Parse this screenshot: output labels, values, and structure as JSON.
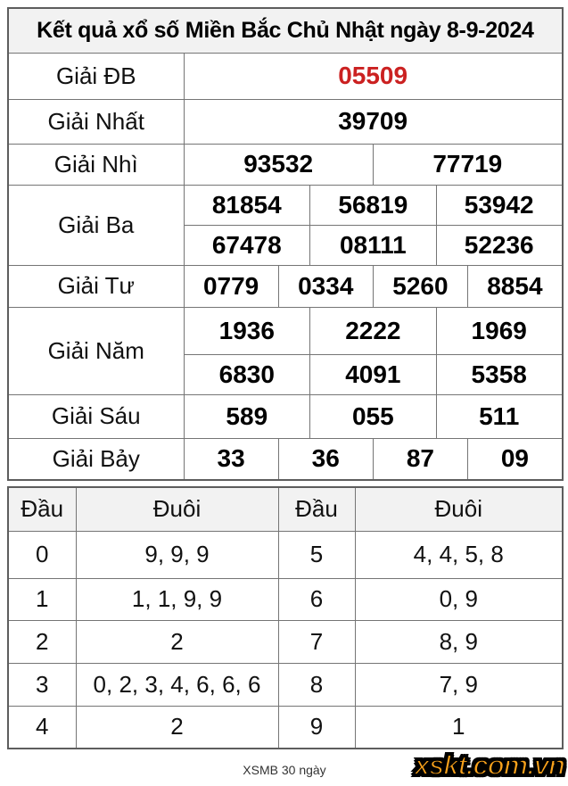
{
  "title": "Kết quả xổ số Miền Bắc Chủ Nhật ngày 8-9-2024",
  "colors": {
    "special_prize_red": "#cb2121",
    "logo_orange": "#f9a21b",
    "header_bg": "#f2f2f2",
    "border_gray": "#757575"
  },
  "results_table": {
    "rows": [
      {
        "label": "Giải ĐB",
        "special": true,
        "groups": [
          [
            "05509"
          ]
        ]
      },
      {
        "label": "Giải Nhất",
        "special": false,
        "groups": [
          [
            "39709"
          ]
        ]
      },
      {
        "label": "Giải Nhì",
        "special": false,
        "groups": [
          [
            "93532",
            "77719"
          ]
        ]
      },
      {
        "label": "Giải Ba",
        "special": false,
        "groups": [
          [
            "81854",
            "56819",
            "53942"
          ],
          [
            "67478",
            "08111",
            "52236"
          ]
        ]
      },
      {
        "label": "Giải Tư",
        "special": false,
        "groups": [
          [
            "0779",
            "0334",
            "5260",
            "8854"
          ]
        ]
      },
      {
        "label": "Giải Năm",
        "special": false,
        "groups": [
          [
            "1936",
            "2222",
            "1969"
          ],
          [
            "6830",
            "4091",
            "5358"
          ]
        ]
      },
      {
        "label": "Giải Sáu",
        "special": false,
        "groups": [
          [
            "589",
            "055",
            "511"
          ]
        ]
      },
      {
        "label": "Giải Bảy",
        "special": false,
        "groups": [
          [
            "33",
            "36",
            "87",
            "09"
          ]
        ]
      }
    ]
  },
  "head_tail_table": {
    "headers": [
      "Đầu",
      "Đuôi",
      "Đầu",
      "Đuôi"
    ],
    "rows": [
      [
        "0",
        "9, 9, 9",
        "5",
        "4, 4, 5, 8"
      ],
      [
        "1",
        "1, 1, 9, 9",
        "6",
        "0, 9"
      ],
      [
        "2",
        "2",
        "7",
        "8, 9"
      ],
      [
        "3",
        "0, 2, 3, 4, 6, 6, 6",
        "8",
        "7, 9"
      ],
      [
        "4",
        "2",
        "9",
        "1"
      ]
    ]
  },
  "footer": {
    "link_label": "XSMB 30 ngày",
    "brand": "xskt.com.vn"
  }
}
